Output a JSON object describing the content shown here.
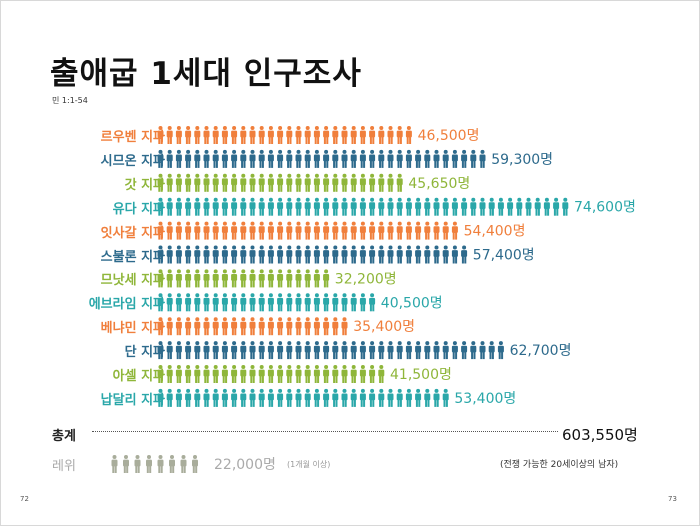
{
  "header": {
    "title": "출애굽 1세대 인구조사",
    "subtitle": "민 1:1-54"
  },
  "colors": {
    "orange": "#f07f3c",
    "navy": "#2d6a8c",
    "lime": "#8fb63a",
    "teal": "#2aa7a9",
    "gray": "#a9ad9b"
  },
  "chart_data": {
    "type": "bar",
    "categories": [
      "르우벤 지파",
      "시므온 지파",
      "갓 지파",
      "유다 지파",
      "잇사갈 지파",
      "스불론 지파",
      "므낫세 지파",
      "에브라임 지파",
      "베냐민 지파",
      "단 지파",
      "아셀 지파",
      "납달리 지파"
    ],
    "values": [
      46500,
      59300,
      45650,
      74600,
      54400,
      57400,
      32200,
      40500,
      35400,
      62700,
      41500,
      53400
    ],
    "value_labels": [
      "46,500명",
      "59,300명",
      "45,650명",
      "74,600명",
      "54,400명",
      "57,400명",
      "32,200명",
      "40,500명",
      "35,400명",
      "62,700명",
      "41,500명",
      "53,400명"
    ],
    "colors": [
      "#f07f3c",
      "#2d6a8c",
      "#8fb63a",
      "#2aa7a9",
      "#f07f3c",
      "#2d6a8c",
      "#8fb63a",
      "#2aa7a9",
      "#f07f3c",
      "#2d6a8c",
      "#8fb63a",
      "#2aa7a9"
    ],
    "unit_per_icon": 1667
  },
  "total": {
    "label": "총계",
    "value": "603,550명"
  },
  "levi": {
    "label": "레위",
    "value": 22000,
    "value_label": "22,000명",
    "note": "(1개월 이상)"
  },
  "footnote": "(전쟁 가능한 20세이상의 남자)",
  "pages": {
    "left": "72",
    "right": "73"
  }
}
